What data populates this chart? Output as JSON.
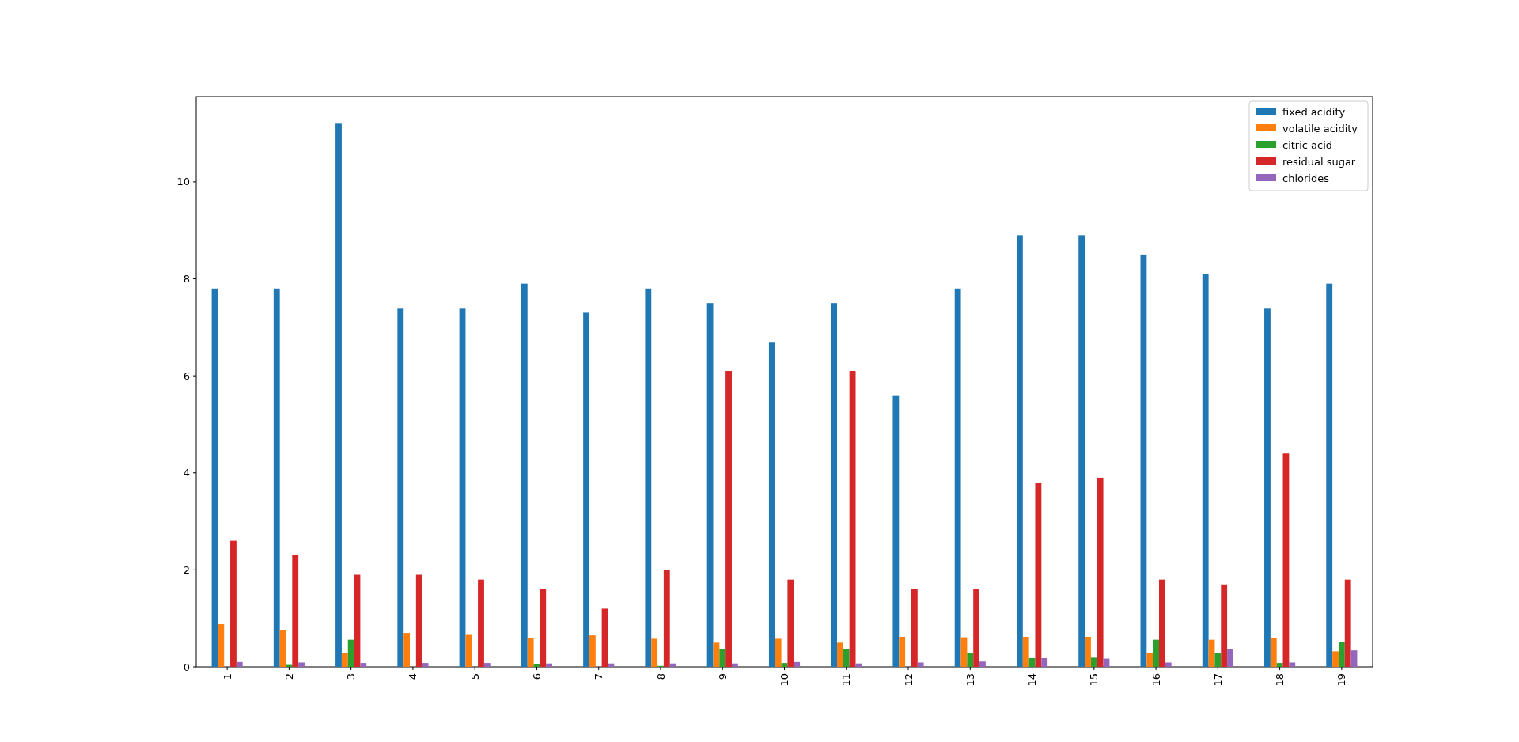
{
  "chart_data": {
    "type": "bar",
    "categories": [
      "1",
      "2",
      "3",
      "4",
      "5",
      "6",
      "7",
      "8",
      "9",
      "10",
      "11",
      "12",
      "13",
      "14",
      "15",
      "16",
      "17",
      "18",
      "19"
    ],
    "series": [
      {
        "name": "fixed acidity",
        "color": "#1f77b4",
        "values": [
          7.8,
          7.8,
          11.2,
          7.4,
          7.4,
          7.9,
          7.3,
          7.8,
          7.5,
          6.7,
          7.5,
          5.6,
          7.8,
          8.9,
          8.9,
          8.5,
          8.1,
          7.4,
          7.9
        ]
      },
      {
        "name": "volatile acidity",
        "color": "#ff7f0e",
        "values": [
          0.88,
          0.76,
          0.28,
          0.7,
          0.66,
          0.6,
          0.65,
          0.58,
          0.5,
          0.58,
          0.5,
          0.62,
          0.61,
          0.62,
          0.62,
          0.28,
          0.56,
          0.59,
          0.32
        ]
      },
      {
        "name": "citric acid",
        "color": "#2ca02c",
        "values": [
          0,
          0.04,
          0.56,
          0,
          0,
          0.06,
          0,
          0.02,
          0.36,
          0.08,
          0.36,
          0,
          0.29,
          0.18,
          0.19,
          0.56,
          0.28,
          0.08,
          0.51
        ]
      },
      {
        "name": "residual sugar",
        "color": "#d62728",
        "values": [
          2.6,
          2.3,
          1.9,
          1.9,
          1.8,
          1.6,
          1.2,
          2.0,
          6.1,
          1.8,
          6.1,
          1.6,
          1.6,
          3.8,
          3.9,
          1.8,
          1.7,
          4.4,
          1.8
        ]
      },
      {
        "name": "chlorides",
        "color": "#9467bd",
        "values": [
          0.1,
          0.09,
          0.08,
          0.08,
          0.08,
          0.07,
          0.07,
          0.07,
          0.07,
          0.1,
          0.07,
          0.09,
          0.11,
          0.18,
          0.17,
          0.09,
          0.37,
          0.09,
          0.34
        ]
      }
    ],
    "ylim": [
      0,
      11.76
    ],
    "yticks": [
      0,
      2,
      4,
      6,
      8,
      10
    ],
    "legend": "top right",
    "grid": false
  }
}
